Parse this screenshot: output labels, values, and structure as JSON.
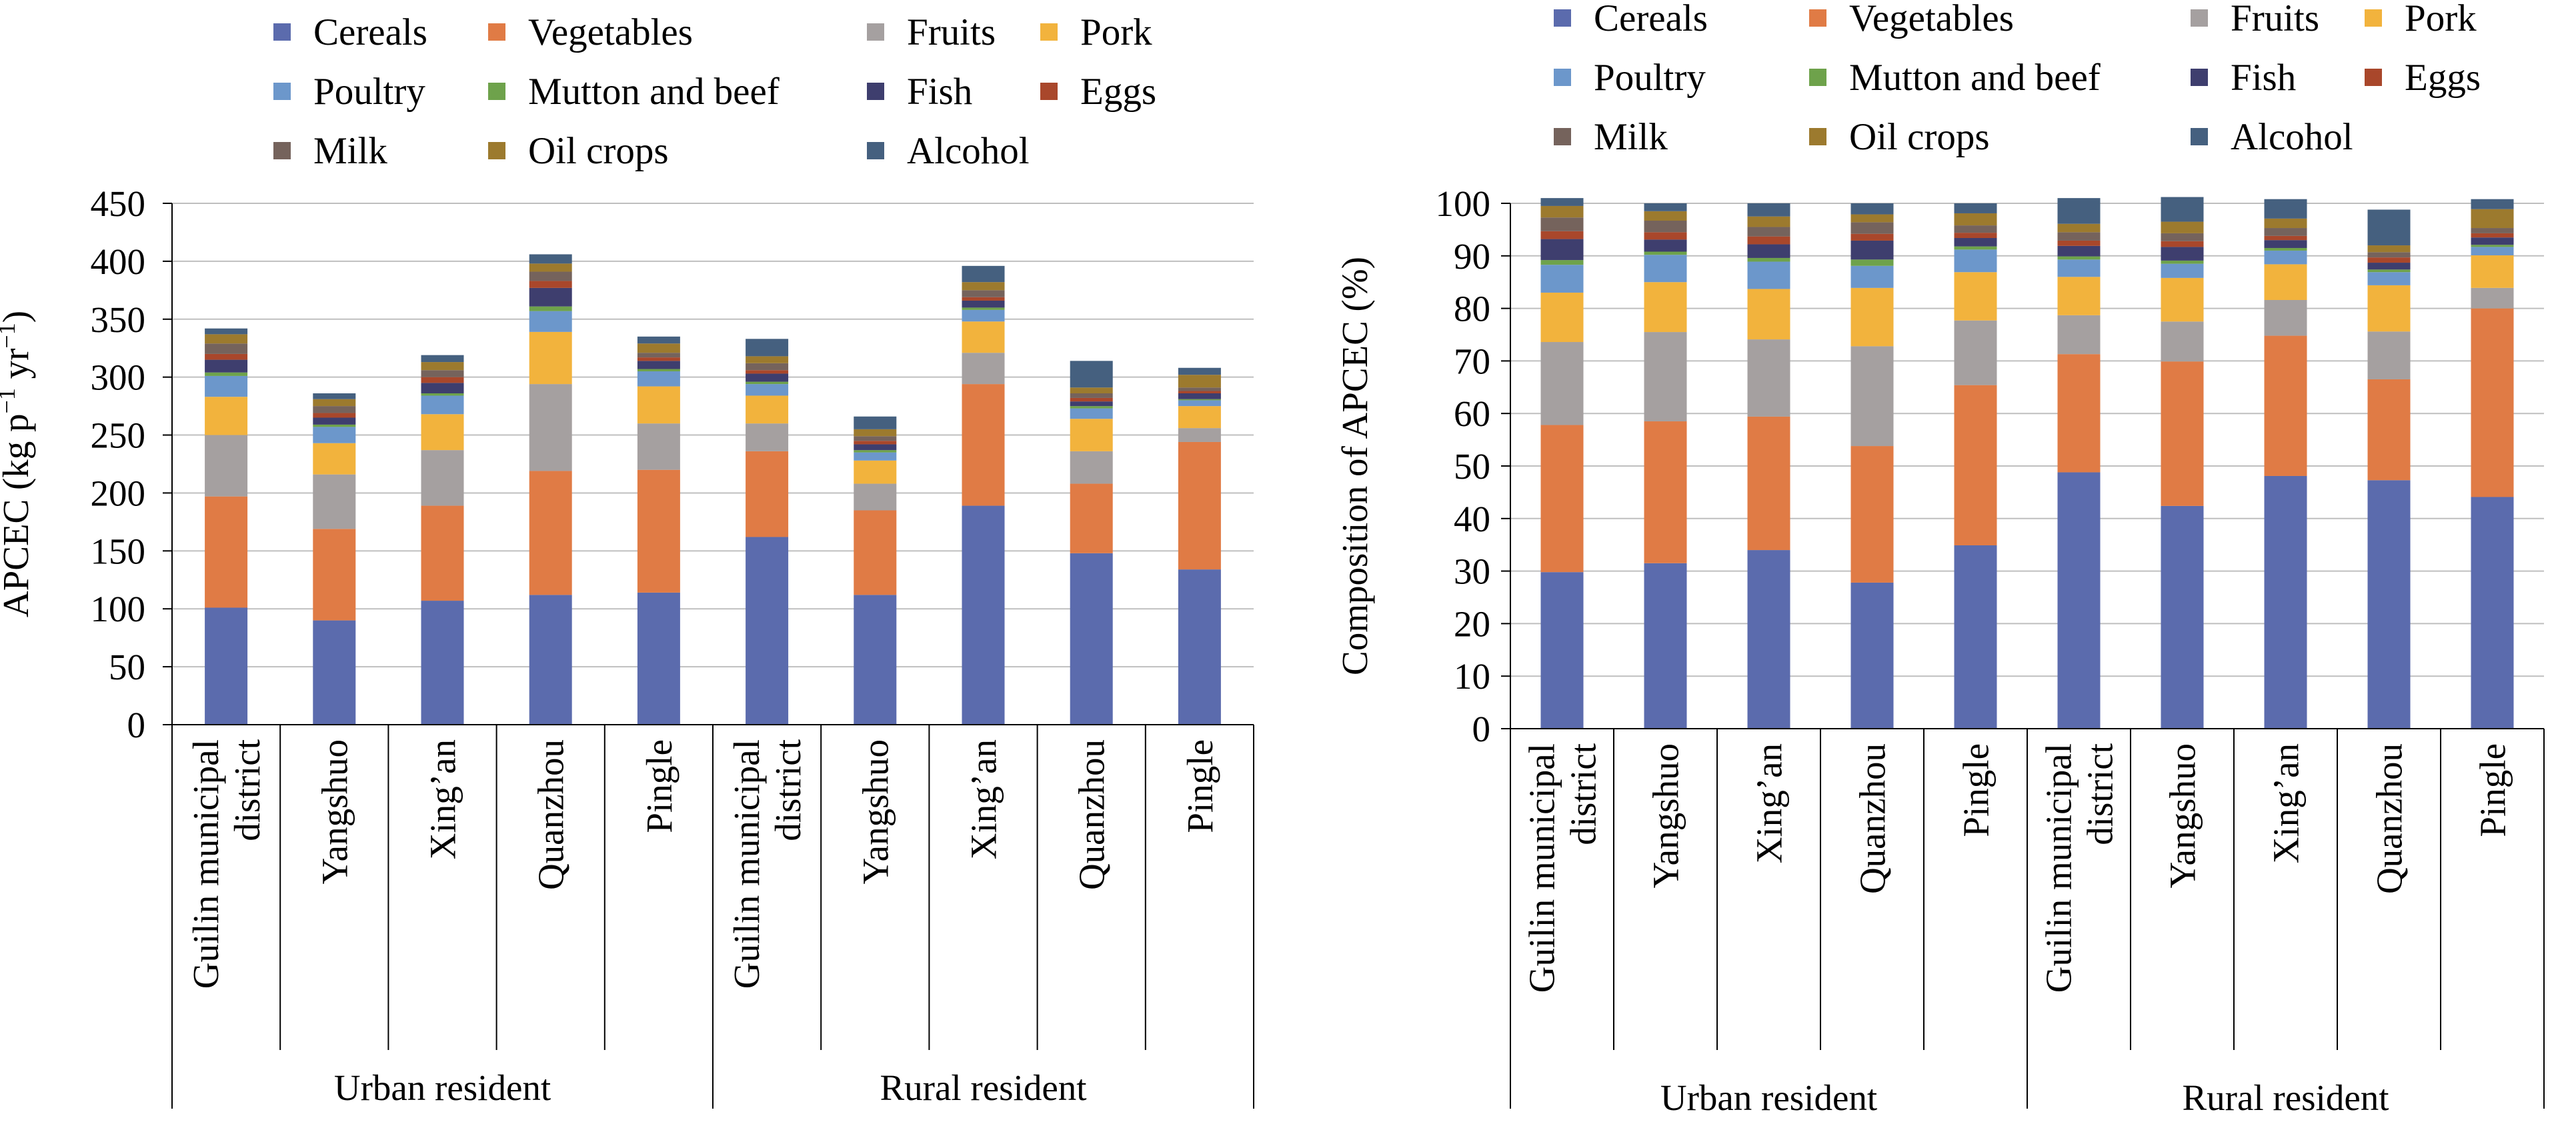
{
  "chart_data": [
    {
      "type": "bar",
      "stacked": true,
      "ylabel_main": "APCEC (kg p",
      "ylabel_sup1": "−1",
      "ylabel_mid": " yr",
      "ylabel_sup2": "−1",
      "ylabel_end": ")",
      "ylim": [
        0,
        450
      ],
      "yticks": [
        0,
        50,
        100,
        150,
        200,
        250,
        300,
        350,
        400,
        450
      ],
      "grid": true,
      "legend_position": "top",
      "categories": [
        {
          "lines": [
            "Guilin municipal",
            "district"
          ],
          "group": "Urban resident"
        },
        {
          "lines": [
            "Yangshuo"
          ],
          "group": "Urban resident"
        },
        {
          "lines": [
            "Xing’an"
          ],
          "group": "Urban resident"
        },
        {
          "lines": [
            "Quanzhou"
          ],
          "group": "Urban resident"
        },
        {
          "lines": [
            "Pingle"
          ],
          "group": "Urban resident"
        },
        {
          "lines": [
            "Guilin municipal",
            "district"
          ],
          "group": "Rural resident"
        },
        {
          "lines": [
            "Yangshuo"
          ],
          "group": "Rural resident"
        },
        {
          "lines": [
            "Xing’an"
          ],
          "group": "Rural resident"
        },
        {
          "lines": [
            "Quanzhou"
          ],
          "group": "Rural resident"
        },
        {
          "lines": [
            "Pingle"
          ],
          "group": "Rural resident"
        }
      ],
      "groups": [
        "Urban resident",
        "Rural resident"
      ],
      "series": [
        {
          "name": "Cereals",
          "color": "#5B6BAD",
          "values": [
            101,
            90,
            107,
            112,
            114,
            162,
            112,
            189,
            148,
            134
          ]
        },
        {
          "name": "Vegetables",
          "color": "#E07B45",
          "values": [
            96,
            79,
            82,
            107,
            106,
            74,
            73,
            105,
            60,
            110
          ]
        },
        {
          "name": "Fruits",
          "color": "#A5A0A0",
          "values": [
            53,
            47,
            48,
            75,
            40,
            24,
            23,
            27,
            28,
            12
          ]
        },
        {
          "name": "Pork",
          "color": "#F2B33D",
          "values": [
            33,
            27,
            31,
            45,
            32,
            24,
            20,
            27,
            28,
            19
          ]
        },
        {
          "name": "Poultry",
          "color": "#6C97CB",
          "values": [
            18,
            14,
            16,
            18,
            13,
            10,
            7,
            10,
            9,
            5
          ]
        },
        {
          "name": "Mutton and beef",
          "color": "#6EA24B",
          "values": [
            3,
            2,
            2,
            4,
            2,
            2,
            2,
            2,
            2,
            1
          ]
        },
        {
          "name": "Fish",
          "color": "#3E3E6E",
          "values": [
            11,
            6,
            9,
            16,
            7,
            7,
            5,
            6,
            4,
            5
          ]
        },
        {
          "name": "Eggs",
          "color": "#A9472B",
          "values": [
            5,
            4,
            5,
            6,
            3,
            3,
            3,
            3,
            3,
            2
          ]
        },
        {
          "name": "Milk",
          "color": "#75635C",
          "values": [
            9,
            6,
            6,
            8,
            4,
            6,
            4,
            6,
            4,
            3
          ]
        },
        {
          "name": "Oil crops",
          "color": "#9C7A2E",
          "values": [
            8,
            6,
            7,
            7,
            8,
            6,
            6,
            7,
            5,
            11
          ]
        },
        {
          "name": "Alcohol",
          "color": "#45607F",
          "values": [
            5,
            5,
            6,
            8,
            6,
            15,
            11,
            14,
            23,
            6
          ]
        }
      ]
    },
    {
      "type": "bar",
      "stacked": true,
      "ylabel_main": "Composition of APCEC (%)",
      "ylim": [
        0,
        100
      ],
      "yticks": [
        0,
        10,
        20,
        30,
        40,
        50,
        60,
        70,
        80,
        90,
        100
      ],
      "grid": true,
      "legend_position": "top",
      "categories": [
        {
          "lines": [
            "Guilin municipal",
            "district"
          ],
          "group": "Urban resident"
        },
        {
          "lines": [
            "Yangshuo"
          ],
          "group": "Urban resident"
        },
        {
          "lines": [
            "Xing’an"
          ],
          "group": "Urban resident"
        },
        {
          "lines": [
            "Quanzhou"
          ],
          "group": "Urban resident"
        },
        {
          "lines": [
            "Pingle"
          ],
          "group": "Urban resident"
        },
        {
          "lines": [
            "Guilin municipal",
            "district"
          ],
          "group": "Rural resident"
        },
        {
          "lines": [
            "Yangshuo"
          ],
          "group": "Rural resident"
        },
        {
          "lines": [
            "Xing’an"
          ],
          "group": "Rural resident"
        },
        {
          "lines": [
            "Quanzhou"
          ],
          "group": "Rural resident"
        },
        {
          "lines": [
            "Pingle"
          ],
          "group": "Rural resident"
        }
      ],
      "groups": [
        "Urban resident",
        "Rural resident"
      ],
      "series": [
        {
          "name": "Cereals",
          "color": "#5B6BAD",
          "values": [
            29.8,
            31.5,
            34.0,
            27.8,
            34.9,
            48.8,
            42.4,
            48.1,
            47.3,
            44.1
          ]
        },
        {
          "name": "Vegetables",
          "color": "#E07B45",
          "values": [
            28.0,
            27.0,
            25.4,
            26.0,
            30.5,
            22.5,
            27.5,
            26.7,
            19.2,
            35.9
          ]
        },
        {
          "name": "Fruits",
          "color": "#A5A0A0",
          "values": [
            15.8,
            17.0,
            14.7,
            19.0,
            12.3,
            7.4,
            7.6,
            6.8,
            9.1,
            3.9
          ]
        },
        {
          "name": "Pork",
          "color": "#F2B33D",
          "values": [
            9.4,
            9.5,
            9.6,
            11.1,
            9.2,
            7.3,
            8.3,
            6.8,
            8.8,
            6.2
          ]
        },
        {
          "name": "Poultry",
          "color": "#6C97CB",
          "values": [
            5.3,
            5.2,
            5.2,
            4.2,
            4.3,
            3.3,
            2.7,
            2.6,
            2.5,
            1.6
          ]
        },
        {
          "name": "Mutton and beef",
          "color": "#6EA24B",
          "values": [
            0.9,
            0.6,
            0.7,
            1.2,
            0.6,
            0.6,
            0.6,
            0.5,
            0.5,
            0.4
          ]
        },
        {
          "name": "Fish",
          "color": "#3E3E6E",
          "values": [
            4.0,
            2.3,
            2.6,
            3.6,
            1.6,
            2.0,
            2.6,
            1.5,
            1.3,
            1.4
          ]
        },
        {
          "name": "Eggs",
          "color": "#A9472B",
          "values": [
            1.5,
            1.4,
            1.5,
            1.3,
            1.0,
            1.0,
            1.1,
            0.8,
            1.0,
            0.8
          ]
        },
        {
          "name": "Milk",
          "color": "#75635C",
          "values": [
            2.6,
            2.2,
            1.8,
            2.2,
            1.4,
            1.6,
            1.5,
            1.5,
            1.0,
            1.0
          ]
        },
        {
          "name": "Oil crops",
          "color": "#9C7A2E",
          "values": [
            2.2,
            1.8,
            2.0,
            1.5,
            2.3,
            1.6,
            2.2,
            1.8,
            1.3,
            3.6
          ]
        },
        {
          "name": "Alcohol",
          "color": "#45607F",
          "values": [
            1.5,
            1.5,
            2.5,
            2.1,
            1.9,
            4.9,
            4.7,
            3.7,
            6.8,
            1.9
          ]
        }
      ]
    }
  ]
}
